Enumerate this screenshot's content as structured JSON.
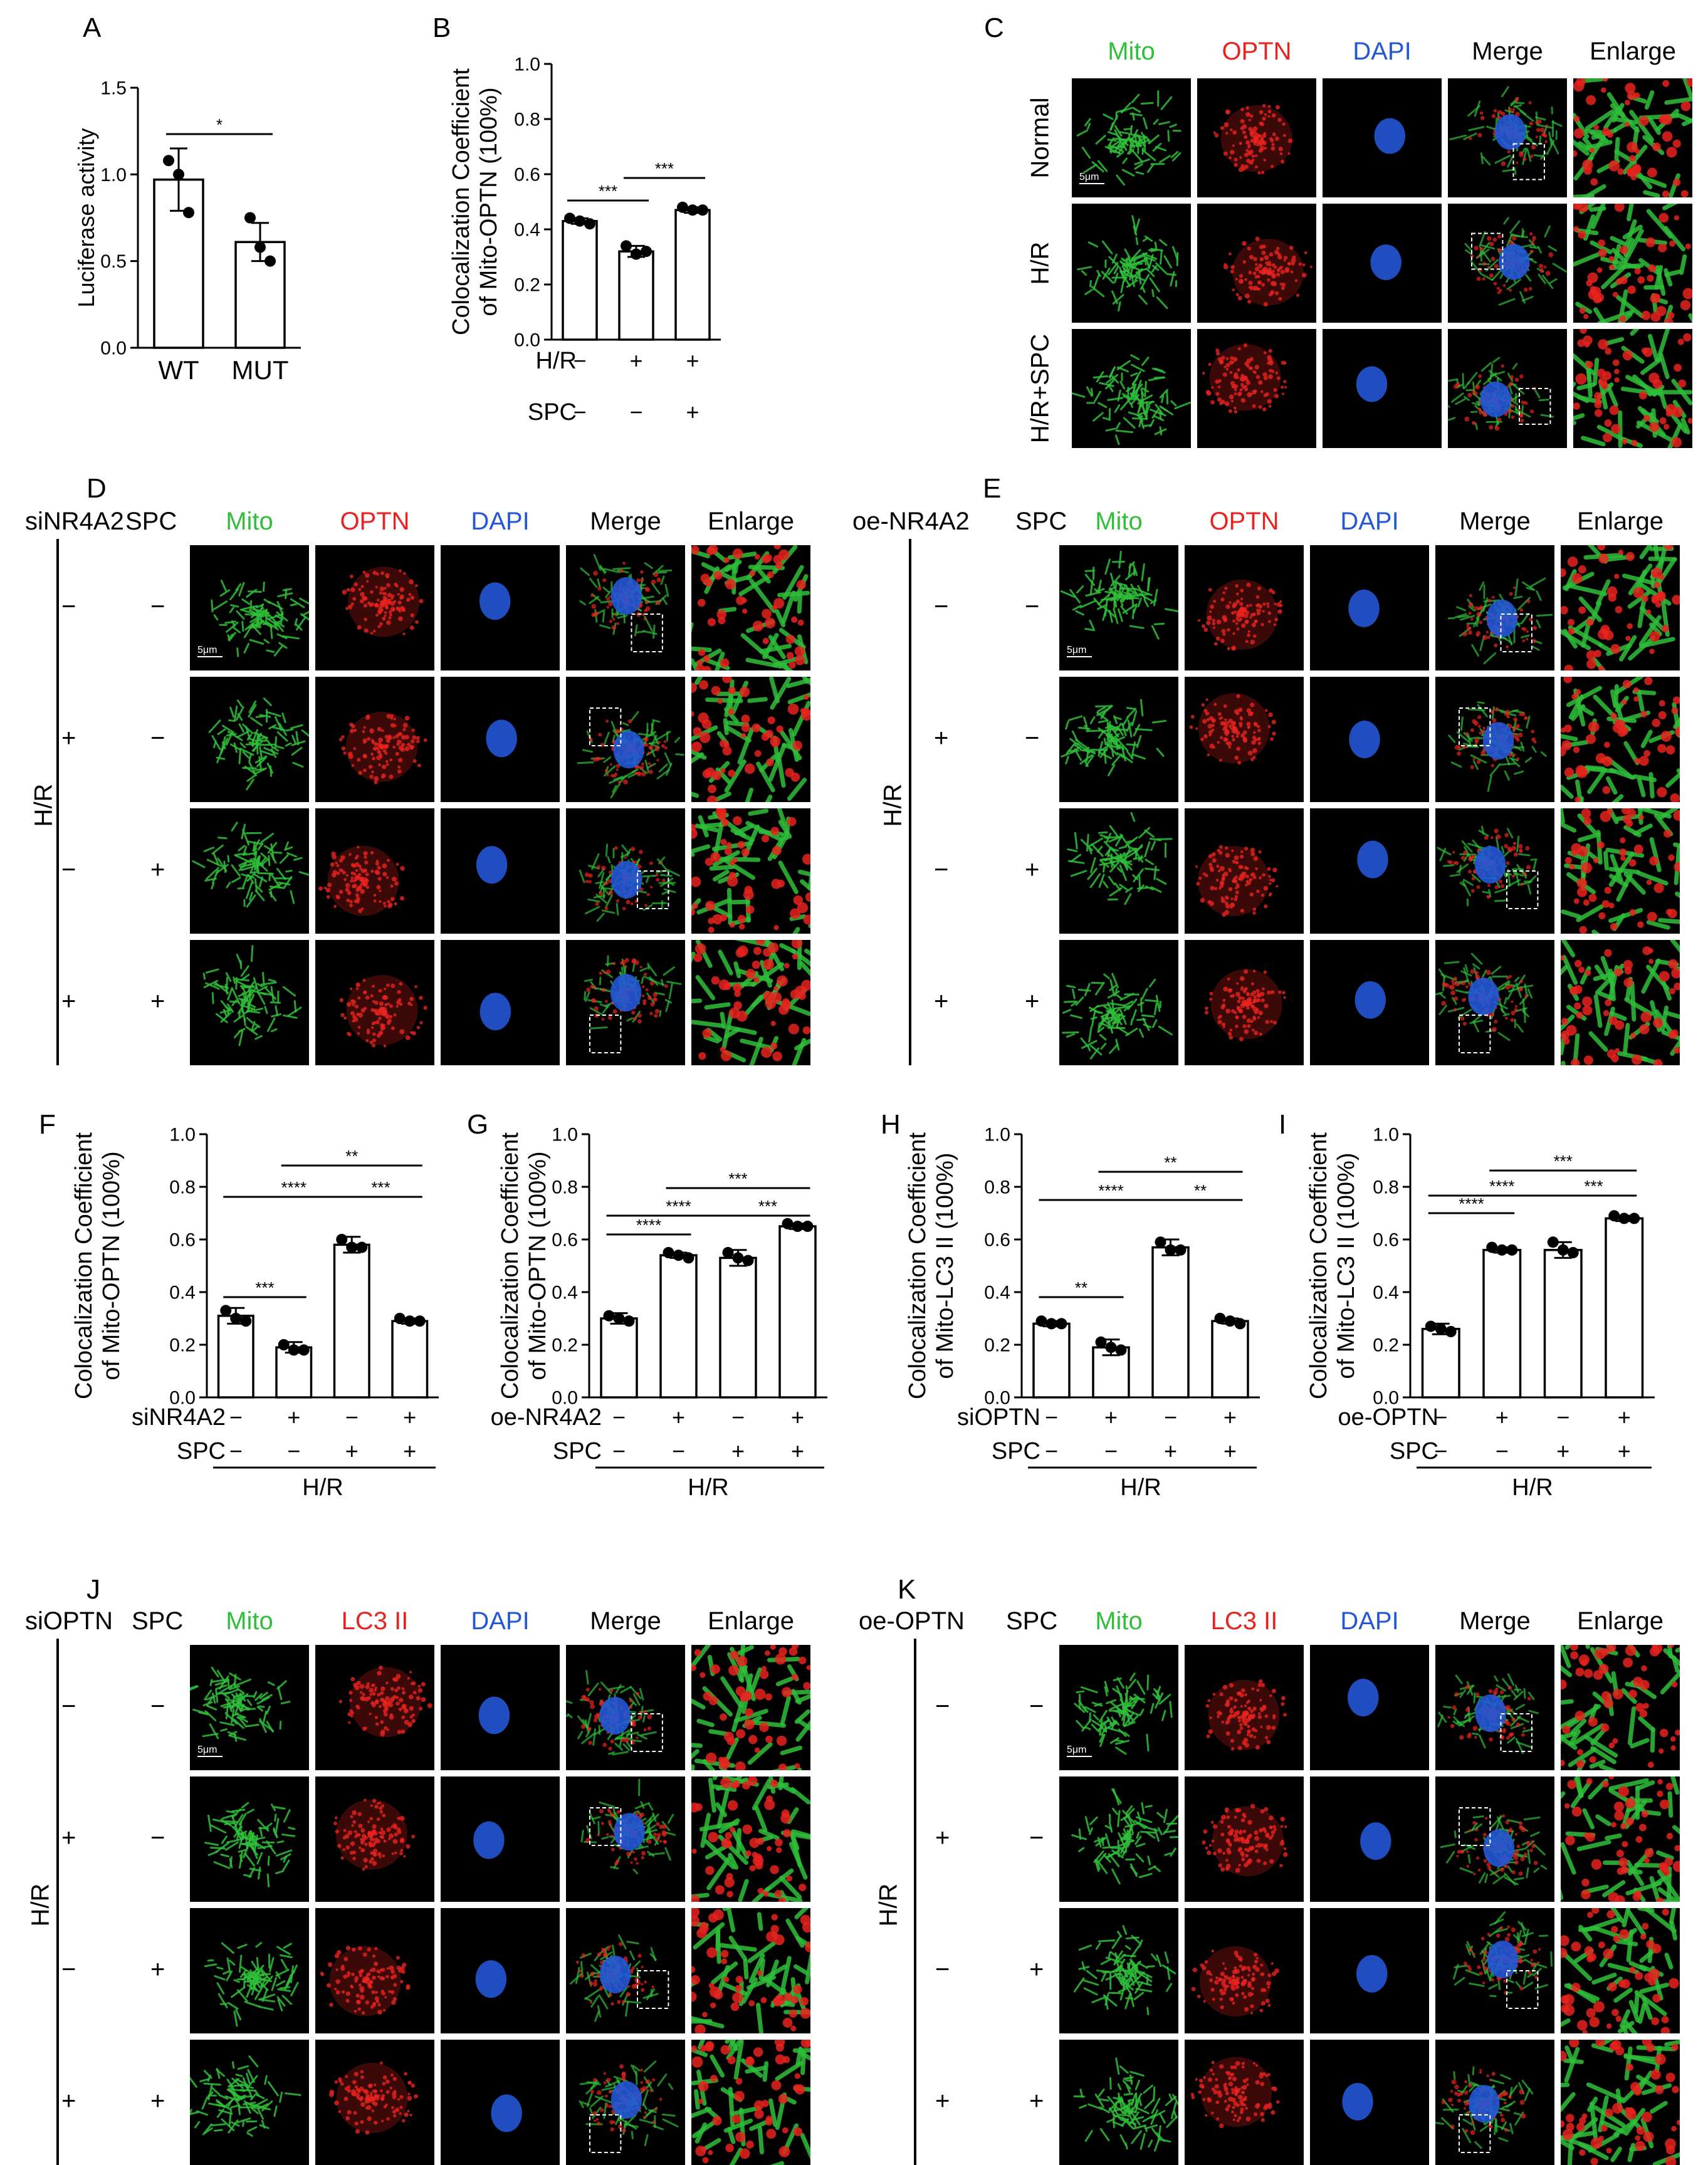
{
  "colors": {
    "mito": "#2fbf3a",
    "optn": "#e8231f",
    "dapi": "#2457d6",
    "black": "#000000"
  },
  "panel_letters": [
    "A",
    "B",
    "C",
    "D",
    "E",
    "F",
    "G",
    "H",
    "I",
    "J",
    "K"
  ],
  "channels_optn": [
    "Mito",
    "OPTN",
    "DAPI",
    "Merge",
    "Enlarge"
  ],
  "channels_lc3": [
    "Mito",
    "LC3 II",
    "DAPI",
    "Merge",
    "Enlarge"
  ],
  "panel_c": {
    "rows": [
      "Normal",
      "H/R",
      "H/R+SPC"
    ],
    "scale": "5μm"
  },
  "panel_d": {
    "factor": "siNR4A2",
    "factor2": "SPC",
    "group": "H/R",
    "rows": [
      [
        "−",
        "−"
      ],
      [
        "+",
        "−"
      ],
      [
        "−",
        "+"
      ],
      [
        "+",
        "+"
      ]
    ],
    "scale": "5μm"
  },
  "panel_e": {
    "factor": "oe-NR4A2",
    "factor2": "SPC",
    "group": "H/R",
    "rows": [
      [
        "−",
        "−"
      ],
      [
        "+",
        "−"
      ],
      [
        "−",
        "+"
      ],
      [
        "+",
        "+"
      ]
    ],
    "scale": "5μm"
  },
  "panel_j": {
    "factor": "siOPTN",
    "factor2": "SPC",
    "group": "H/R",
    "rows": [
      [
        "−",
        "−"
      ],
      [
        "+",
        "−"
      ],
      [
        "−",
        "+"
      ],
      [
        "+",
        "+"
      ]
    ],
    "scale": "5μm"
  },
  "panel_k": {
    "factor": "oe-OPTN",
    "factor2": "SPC",
    "group": "H/R",
    "rows": [
      [
        "−",
        "−"
      ],
      [
        "+",
        "−"
      ],
      [
        "−",
        "+"
      ],
      [
        "+",
        "+"
      ]
    ],
    "scale": "5μm"
  },
  "chart_data": [
    {
      "panel": "A",
      "type": "bar",
      "ylabel": "Luciferase activity",
      "ylim": [
        0,
        1.5
      ],
      "yticks": [
        "0.0",
        "0.5",
        "1.0",
        "1.5"
      ],
      "categories": [
        "WT",
        "MUT"
      ],
      "values": [
        0.97,
        0.61
      ],
      "errors": [
        0.18,
        0.11
      ],
      "points": [
        [
          1.08,
          1.0,
          0.78
        ],
        [
          0.75,
          0.58,
          0.5
        ]
      ],
      "sig": [
        {
          "from": 0,
          "to": 1,
          "label": "*"
        }
      ]
    },
    {
      "panel": "B",
      "type": "bar",
      "ylabel": "Colocalization Coefficient of Mito-OPTN (100%)",
      "ylim": [
        0,
        1.0
      ],
      "yticks": [
        "0.0",
        "0.2",
        "0.4",
        "0.6",
        "0.8",
        "1.0"
      ],
      "row_labels": [
        "H/R",
        "SPC"
      ],
      "conditions": [
        [
          "−",
          "+",
          "+"
        ],
        [
          "−",
          "−",
          "+"
        ]
      ],
      "values": [
        0.43,
        0.32,
        0.47
      ],
      "errors": [
        0.01,
        0.02,
        0.01
      ],
      "points": [
        [
          0.44,
          0.43,
          0.42
        ],
        [
          0.34,
          0.31,
          0.32
        ],
        [
          0.48,
          0.47,
          0.47
        ]
      ],
      "sig": [
        {
          "from": 0,
          "to": 1,
          "label": "***"
        },
        {
          "from": 1,
          "to": 2,
          "label": "***"
        }
      ]
    },
    {
      "panel": "F",
      "type": "bar",
      "ylabel": "Colocalization Coefficient of Mito-OPTN (100%)",
      "ylim": [
        0,
        1.0
      ],
      "yticks": [
        "0.0",
        "0.2",
        "0.4",
        "0.6",
        "0.8",
        "1.0"
      ],
      "row_labels": [
        "siNR4A2",
        "SPC"
      ],
      "conditions": [
        [
          "−",
          "+",
          "−",
          "+"
        ],
        [
          "−",
          "−",
          "+",
          "+"
        ]
      ],
      "group": "H/R",
      "values": [
        0.31,
        0.19,
        0.58,
        0.29
      ],
      "errors": [
        0.03,
        0.02,
        0.03,
        0.01
      ],
      "points": [
        [
          0.33,
          0.3,
          0.29
        ],
        [
          0.2,
          0.18,
          0.18
        ],
        [
          0.6,
          0.57,
          0.57
        ],
        [
          0.3,
          0.29,
          0.29
        ]
      ],
      "sig": [
        {
          "from": 0,
          "to": 1,
          "label": "***"
        },
        {
          "from": 0,
          "to": 2,
          "label": "****"
        },
        {
          "from": 2,
          "to": 3,
          "label": "***"
        },
        {
          "from": 1,
          "to": 3,
          "label": "**"
        }
      ]
    },
    {
      "panel": "G",
      "type": "bar",
      "ylabel": "Colocalization Coefficient of Mito-OPTN (100%)",
      "ylim": [
        0,
        1.0
      ],
      "yticks": [
        "0.0",
        "0.2",
        "0.4",
        "0.6",
        "0.8",
        "1.0"
      ],
      "row_labels": [
        "oe-NR4A2",
        "SPC"
      ],
      "conditions": [
        [
          "−",
          "+",
          "−",
          "+"
        ],
        [
          "−",
          "−",
          "+",
          "+"
        ]
      ],
      "group": "H/R",
      "values": [
        0.3,
        0.54,
        0.53,
        0.65
      ],
      "errors": [
        0.02,
        0.01,
        0.03,
        0.01
      ],
      "points": [
        [
          0.31,
          0.3,
          0.29
        ],
        [
          0.55,
          0.54,
          0.53
        ],
        [
          0.55,
          0.53,
          0.52
        ],
        [
          0.66,
          0.65,
          0.65
        ]
      ],
      "sig": [
        {
          "from": 0,
          "to": 1,
          "label": "****"
        },
        {
          "from": 0,
          "to": 2,
          "label": "****"
        },
        {
          "from": 2,
          "to": 3,
          "label": "***"
        },
        {
          "from": 1,
          "to": 3,
          "label": "***"
        }
      ]
    },
    {
      "panel": "H",
      "type": "bar",
      "ylabel": "Colocalization Coefficient of Mito-LC3 II (100%)",
      "ylim": [
        0,
        1.0
      ],
      "yticks": [
        "0.0",
        "0.2",
        "0.4",
        "0.6",
        "0.8",
        "1.0"
      ],
      "row_labels": [
        "siOPTN",
        "SPC"
      ],
      "conditions": [
        [
          "−",
          "+",
          "−",
          "+"
        ],
        [
          "−",
          "−",
          "+",
          "+"
        ]
      ],
      "group": "H/R",
      "values": [
        0.28,
        0.19,
        0.57,
        0.29
      ],
      "errors": [
        0.01,
        0.03,
        0.03,
        0.01
      ],
      "points": [
        [
          0.29,
          0.28,
          0.28
        ],
        [
          0.21,
          0.19,
          0.18
        ],
        [
          0.59,
          0.56,
          0.56
        ],
        [
          0.3,
          0.29,
          0.28
        ]
      ],
      "sig": [
        {
          "from": 0,
          "to": 1,
          "label": "**"
        },
        {
          "from": 0,
          "to": 2,
          "label": "****"
        },
        {
          "from": 2,
          "to": 3,
          "label": "**"
        },
        {
          "from": 1,
          "to": 3,
          "label": "**"
        }
      ]
    },
    {
      "panel": "I",
      "type": "bar",
      "ylabel": "Colocalization Coefficient of Mito-LC3 II (100%)",
      "ylim": [
        0,
        1.0
      ],
      "yticks": [
        "0.0",
        "0.2",
        "0.4",
        "0.6",
        "0.8",
        "1.0"
      ],
      "row_labels": [
        "oe-OPTN",
        "SPC"
      ],
      "conditions": [
        [
          "−",
          "+",
          "−",
          "+"
        ],
        [
          "−",
          "−",
          "+",
          "+"
        ]
      ],
      "group": "H/R",
      "values": [
        0.26,
        0.56,
        0.56,
        0.68
      ],
      "errors": [
        0.02,
        0.01,
        0.03,
        0.01
      ],
      "points": [
        [
          0.27,
          0.26,
          0.25
        ],
        [
          0.57,
          0.56,
          0.56
        ],
        [
          0.59,
          0.56,
          0.55
        ],
        [
          0.69,
          0.68,
          0.68
        ]
      ],
      "sig": [
        {
          "from": 0,
          "to": 1,
          "label": "****"
        },
        {
          "from": 0,
          "to": 2,
          "label": "****"
        },
        {
          "from": 2,
          "to": 3,
          "label": "***"
        },
        {
          "from": 1,
          "to": 3,
          "label": "***"
        }
      ]
    }
  ]
}
